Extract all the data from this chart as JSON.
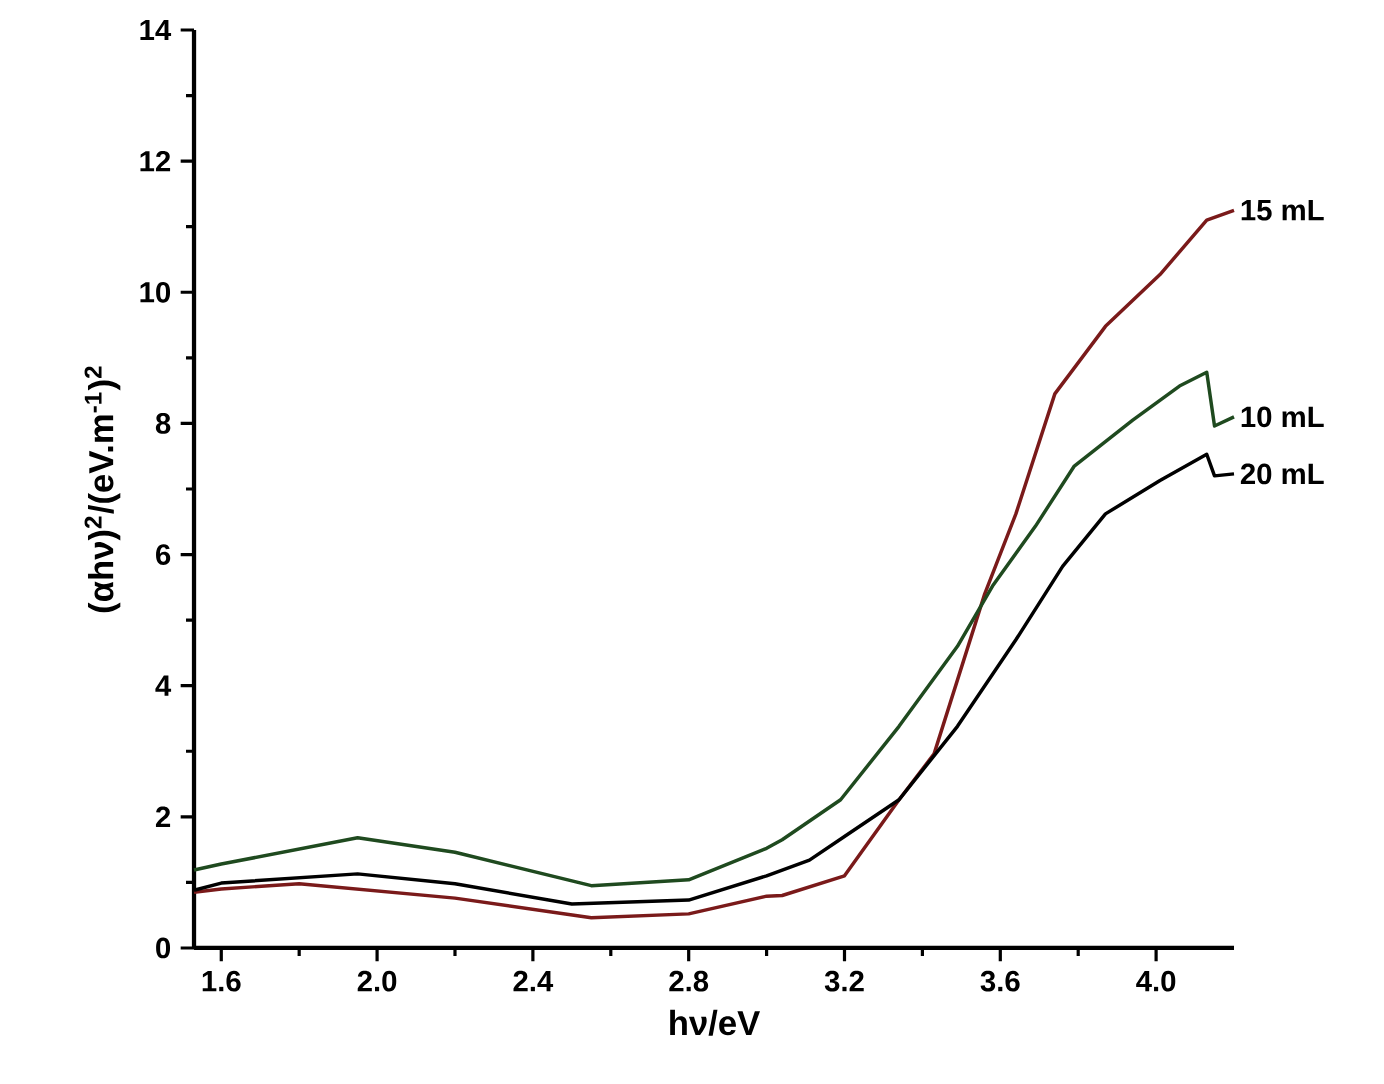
{
  "chart_data": {
    "type": "line",
    "xlabel": "hν/eV",
    "ylabel": "(αhν)$^{2}$/(eV.m$^{-1}$)$^{2}$",
    "xlim": [
      1.53,
      4.2
    ],
    "ylim": [
      0,
      14
    ],
    "xticks": [
      1.6,
      {
        "value": 2,
        "label": "2.0"
      },
      2.4,
      2.8,
      3.2,
      3.6,
      {
        "value": 4,
        "label": "4.0"
      }
    ],
    "yticks": [
      0,
      2,
      4,
      6,
      8,
      10,
      12,
      14
    ],
    "marker": "none",
    "line_style": "solid",
    "series": [
      {
        "name": "15 mL",
        "color": "#7a1a1a",
        "x": [
          1.53,
          1.6,
          1.8,
          2.2,
          2.55,
          2.8,
          3.0,
          3.04,
          3.2,
          3.34,
          3.43,
          3.56,
          3.64,
          3.74,
          3.87,
          4.01,
          4.13,
          4.2
        ],
        "values": [
          0.85,
          0.9,
          0.98,
          0.76,
          0.46,
          0.52,
          0.79,
          0.8,
          1.1,
          2.26,
          2.96,
          5.4,
          6.62,
          8.45,
          9.48,
          10.27,
          11.1,
          11.25
        ]
      },
      {
        "name": "10 mL",
        "color": "#1f4a1f",
        "x": [
          1.53,
          1.6,
          1.95,
          2.2,
          2.55,
          2.8,
          3.0,
          3.04,
          3.19,
          3.34,
          3.49,
          3.58,
          3.69,
          3.79,
          3.94,
          4.06,
          4.13,
          4.15,
          4.2
        ],
        "values": [
          1.19,
          1.28,
          1.68,
          1.46,
          0.95,
          1.04,
          1.52,
          1.65,
          2.26,
          3.38,
          4.6,
          5.52,
          6.43,
          7.35,
          8.05,
          8.57,
          8.78,
          7.96,
          8.1
        ]
      },
      {
        "name": "20 mL",
        "color": "#000000",
        "x": [
          1.53,
          1.6,
          1.95,
          2.2,
          2.5,
          2.8,
          3.0,
          3.11,
          3.2,
          3.34,
          3.49,
          3.64,
          3.76,
          3.87,
          4.01,
          4.13,
          4.15,
          4.2
        ],
        "values": [
          0.88,
          0.99,
          1.13,
          0.98,
          0.67,
          0.73,
          1.1,
          1.34,
          1.7,
          2.26,
          3.38,
          4.7,
          5.82,
          6.62,
          7.13,
          7.53,
          7.2,
          7.23
        ]
      }
    ]
  }
}
